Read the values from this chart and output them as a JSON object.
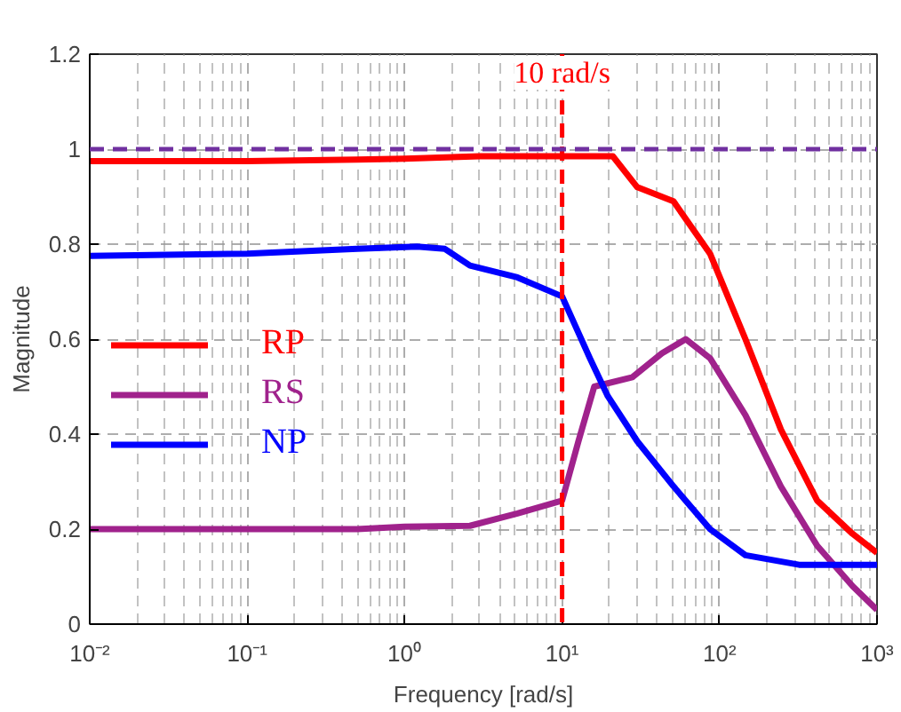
{
  "chart_data": {
    "type": "line",
    "xlabel": "Frequency [rad/s]",
    "ylabel": "Magnitude",
    "log": "x",
    "xlim": [
      0.01,
      1000
    ],
    "xticks": [
      {
        "value": 0.01,
        "label": "10⁻²"
      },
      {
        "value": 0.1,
        "label": "10⁻¹"
      },
      {
        "value": 1,
        "label": "10⁰"
      },
      {
        "value": 10,
        "label": "10¹"
      },
      {
        "value": 100,
        "label": "10²"
      },
      {
        "value": 1000,
        "label": "10³"
      }
    ],
    "ylim": [
      0,
      1.2
    ],
    "yticks": [
      0,
      0.2,
      0.4,
      0.6,
      0.8,
      1,
      1.2
    ],
    "grid": true,
    "legend": "left",
    "line_style": "solid",
    "series": [
      {
        "name": "RP",
        "color": "#ff0000",
        "x": [
          0.01,
          0.1,
          0.5,
          1,
          3,
          10,
          21,
          30,
          51,
          87,
          146,
          245,
          417,
          700,
          1000
        ],
        "values": [
          0.975,
          0.975,
          0.978,
          0.98,
          0.985,
          0.985,
          0.985,
          0.92,
          0.89,
          0.78,
          0.6,
          0.41,
          0.26,
          0.19,
          0.15
        ]
      },
      {
        "name": "RS",
        "color": "#a0228c",
        "x": [
          0.01,
          0.1,
          0.5,
          1,
          2.6,
          5.2,
          10,
          12.7,
          16,
          28,
          43,
          61,
          87,
          146,
          245,
          417,
          700,
          1000
        ],
        "values": [
          0.2,
          0.2,
          0.2,
          0.205,
          0.207,
          0.233,
          0.26,
          0.385,
          0.5,
          0.52,
          0.57,
          0.6,
          0.56,
          0.44,
          0.29,
          0.165,
          0.08,
          0.03
        ]
      },
      {
        "name": "NP",
        "color": "#0000ff",
        "x": [
          0.01,
          0.1,
          0.5,
          1.2,
          1.8,
          2.6,
          5.2,
          10,
          15,
          19.5,
          30,
          51,
          87,
          146,
          320,
          1000
        ],
        "values": [
          0.775,
          0.78,
          0.79,
          0.795,
          0.79,
          0.755,
          0.73,
          0.69,
          0.56,
          0.48,
          0.385,
          0.29,
          0.2,
          0.145,
          0.125,
          0.125
        ]
      }
    ],
    "ref_lines": [
      {
        "axis": "x",
        "value": 10,
        "label": "10 rad/s",
        "color": "#ff0000",
        "line_style": "dashed"
      },
      {
        "axis": "y",
        "value": 1,
        "color": "#7030a0",
        "line_style": "dashed"
      }
    ]
  }
}
